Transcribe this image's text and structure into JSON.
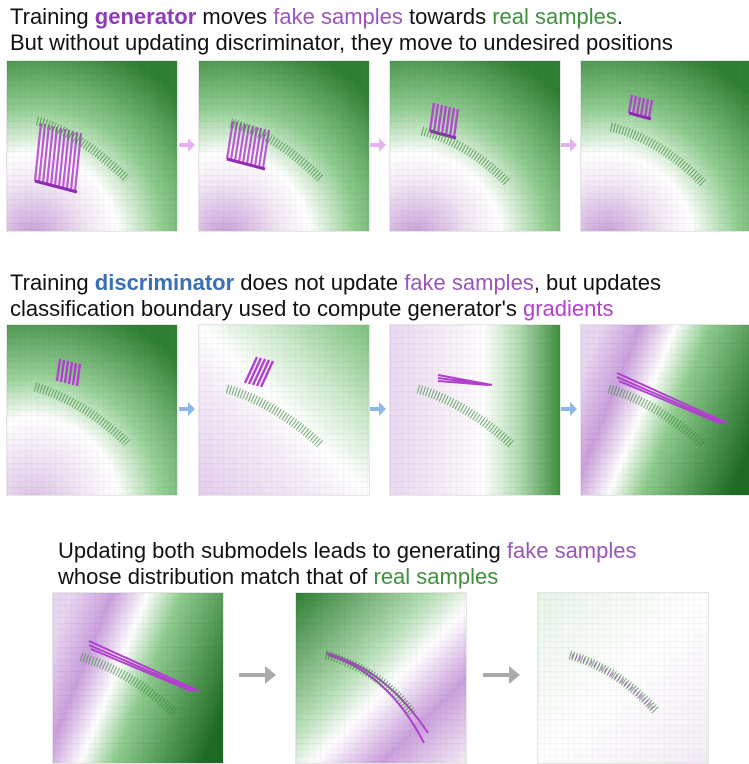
{
  "captions": {
    "row1": {
      "line1": {
        "t1": "Training ",
        "generator": "generator",
        "t2": " moves ",
        "fake": "fake samples",
        "t3": " towards ",
        "real": "real samples",
        "t4": "."
      },
      "line2": "But without updating discriminator, they move to undesired positions"
    },
    "row2": {
      "line1": {
        "t1": "Training ",
        "discriminator": "discriminator",
        "t2": " does not update ",
        "fake": "fake samples",
        "t3": ", but updates"
      },
      "line2": {
        "t1": "classification boundary used to compute generator's ",
        "gradients": "gradients"
      }
    },
    "row3": {
      "line1": {
        "t1": "Updating both submodels leads to generating ",
        "fake": "fake samples"
      },
      "line2": {
        "t1": "whose distribution match that of ",
        "real": "real samples"
      }
    }
  },
  "colors": {
    "generator": "#8e3bb8",
    "discriminator": "#3a6fb7",
    "fake": "#9a55b8",
    "real": "#3f8f3f",
    "gradient": "#b23fd0",
    "arrow_row1": "#e4b3ef",
    "arrow_row2": "#8fb7e6",
    "arrow_row3": "#aaaaaa"
  },
  "icons": {
    "arrow": "right-arrow-icon"
  }
}
